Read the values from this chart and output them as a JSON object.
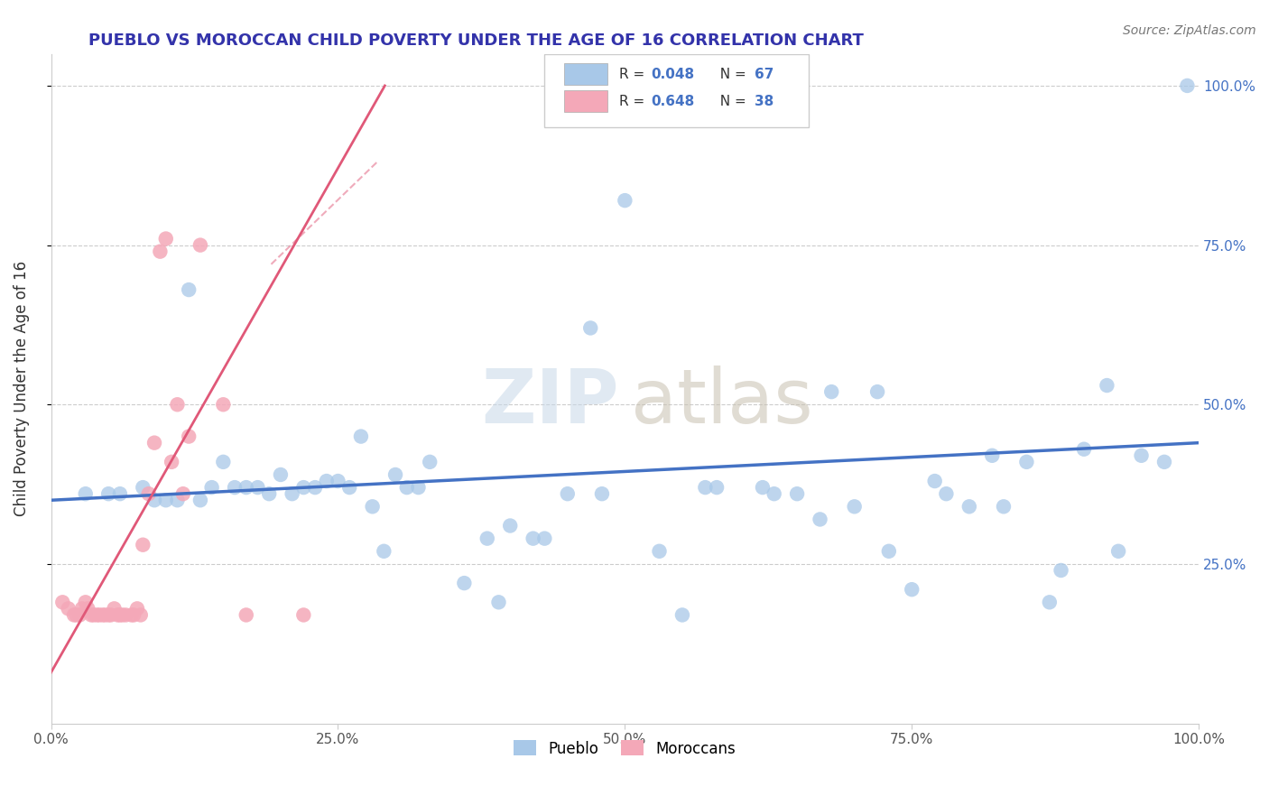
{
  "title": "PUEBLO VS MOROCCAN CHILD POVERTY UNDER THE AGE OF 16 CORRELATION CHART",
  "source": "Source: ZipAtlas.com",
  "ylabel": "Child Poverty Under the Age of 16",
  "xlim": [
    0.0,
    1.0
  ],
  "ylim": [
    0.0,
    1.05
  ],
  "xtick_labels": [
    "0.0%",
    "25.0%",
    "50.0%",
    "75.0%",
    "100.0%"
  ],
  "xtick_vals": [
    0.0,
    0.25,
    0.5,
    0.75,
    1.0
  ],
  "ytick_labels": [
    "25.0%",
    "50.0%",
    "75.0%",
    "100.0%"
  ],
  "ytick_vals": [
    0.25,
    0.5,
    0.75,
    1.0
  ],
  "pueblo_color": "#a8c8e8",
  "moroccan_color": "#f4a8b8",
  "pueblo_line_color": "#4472c4",
  "moroccan_line_color": "#e05878",
  "title_color": "#3333aa",
  "watermark_zip_color": "#c8d8e8",
  "watermark_atlas_color": "#c8c0b0",
  "pueblo_x": [
    0.12,
    0.27,
    0.47,
    0.5,
    0.62,
    0.68,
    0.72,
    0.8,
    0.85,
    0.9,
    0.95,
    0.99,
    0.05,
    0.08,
    0.1,
    0.11,
    0.13,
    0.14,
    0.15,
    0.16,
    0.18,
    0.19,
    0.2,
    0.21,
    0.22,
    0.23,
    0.24,
    0.25,
    0.26,
    0.28,
    0.3,
    0.32,
    0.33,
    0.38,
    0.4,
    0.42,
    0.45,
    0.55,
    0.58,
    0.65,
    0.7,
    0.75,
    0.78,
    0.82,
    0.88,
    0.92,
    0.97,
    0.03,
    0.06,
    0.09,
    0.17,
    0.29,
    0.31,
    0.36,
    0.39,
    0.43,
    0.48,
    0.53,
    0.57,
    0.63,
    0.67,
    0.73,
    0.77,
    0.83,
    0.87,
    0.93
  ],
  "pueblo_y": [
    0.68,
    0.45,
    0.62,
    0.82,
    0.37,
    0.52,
    0.52,
    0.34,
    0.41,
    0.43,
    0.42,
    1.0,
    0.36,
    0.37,
    0.35,
    0.35,
    0.35,
    0.37,
    0.41,
    0.37,
    0.37,
    0.36,
    0.39,
    0.36,
    0.37,
    0.37,
    0.38,
    0.38,
    0.37,
    0.34,
    0.39,
    0.37,
    0.41,
    0.29,
    0.31,
    0.29,
    0.36,
    0.17,
    0.37,
    0.36,
    0.34,
    0.21,
    0.36,
    0.42,
    0.24,
    0.53,
    0.41,
    0.36,
    0.36,
    0.35,
    0.37,
    0.27,
    0.37,
    0.22,
    0.19,
    0.29,
    0.36,
    0.27,
    0.37,
    0.36,
    0.32,
    0.27,
    0.38,
    0.34,
    0.19,
    0.27
  ],
  "moroccan_x": [
    0.01,
    0.015,
    0.02,
    0.022,
    0.025,
    0.027,
    0.03,
    0.032,
    0.035,
    0.037,
    0.04,
    0.042,
    0.045,
    0.047,
    0.05,
    0.052,
    0.055,
    0.058,
    0.06,
    0.062,
    0.065,
    0.07,
    0.072,
    0.075,
    0.078,
    0.08,
    0.085,
    0.09,
    0.095,
    0.1,
    0.105,
    0.11,
    0.115,
    0.12,
    0.13,
    0.15,
    0.17,
    0.22
  ],
  "moroccan_y": [
    0.19,
    0.18,
    0.17,
    0.17,
    0.17,
    0.18,
    0.19,
    0.18,
    0.17,
    0.17,
    0.17,
    0.17,
    0.17,
    0.17,
    0.17,
    0.17,
    0.18,
    0.17,
    0.17,
    0.17,
    0.17,
    0.17,
    0.17,
    0.18,
    0.17,
    0.28,
    0.36,
    0.44,
    0.74,
    0.76,
    0.41,
    0.5,
    0.36,
    0.45,
    0.75,
    0.5,
    0.17,
    0.17
  ],
  "moroccan_line_x0": 0.0,
  "moroccan_line_y0": 0.08,
  "moroccan_line_x1": 0.275,
  "moroccan_line_y1": 0.95,
  "pueblo_line_x0": 0.0,
  "pueblo_line_y0": 0.35,
  "pueblo_line_x1": 1.0,
  "pueblo_line_y1": 0.44
}
